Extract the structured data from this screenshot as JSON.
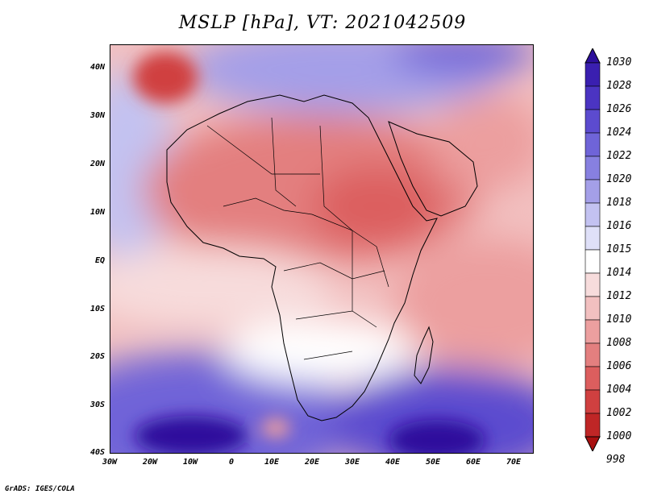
{
  "title": "MSLP [hPa], VT: 2021042509",
  "footer": "GrADS: IGES/COLA",
  "map": {
    "lat_labels": [
      "40N",
      "30N",
      "20N",
      "10N",
      "EQ",
      "10S",
      "20S",
      "30S",
      "40S"
    ],
    "lon_labels": [
      "30W",
      "20W",
      "10W",
      "0",
      "10E",
      "20E",
      "30E",
      "40E",
      "50E",
      "60E",
      "70E"
    ],
    "lat_range": [
      -40,
      45
    ],
    "lon_range": [
      -30,
      75
    ]
  },
  "colorbar": {
    "levels": [
      "1030",
      "1028",
      "1026",
      "1024",
      "1022",
      "1020",
      "1018",
      "1016",
      "1015",
      "1014",
      "1012",
      "1010",
      "1008",
      "1006",
      "1004",
      "1002",
      "1000",
      "998"
    ],
    "colors": [
      "#2d0f9c",
      "#3a1fb0",
      "#4b34c2",
      "#5c4bcf",
      "#6f64d8",
      "#8780e0",
      "#a49fe8",
      "#c3c2f1",
      "#dfe0f8",
      "#ffffff",
      "#f7dcdc",
      "#f2c0c0",
      "#ec9f9f",
      "#e37f7f",
      "#dc5e5e",
      "#d04040",
      "#bf2626",
      "#a81010"
    ]
  }
}
